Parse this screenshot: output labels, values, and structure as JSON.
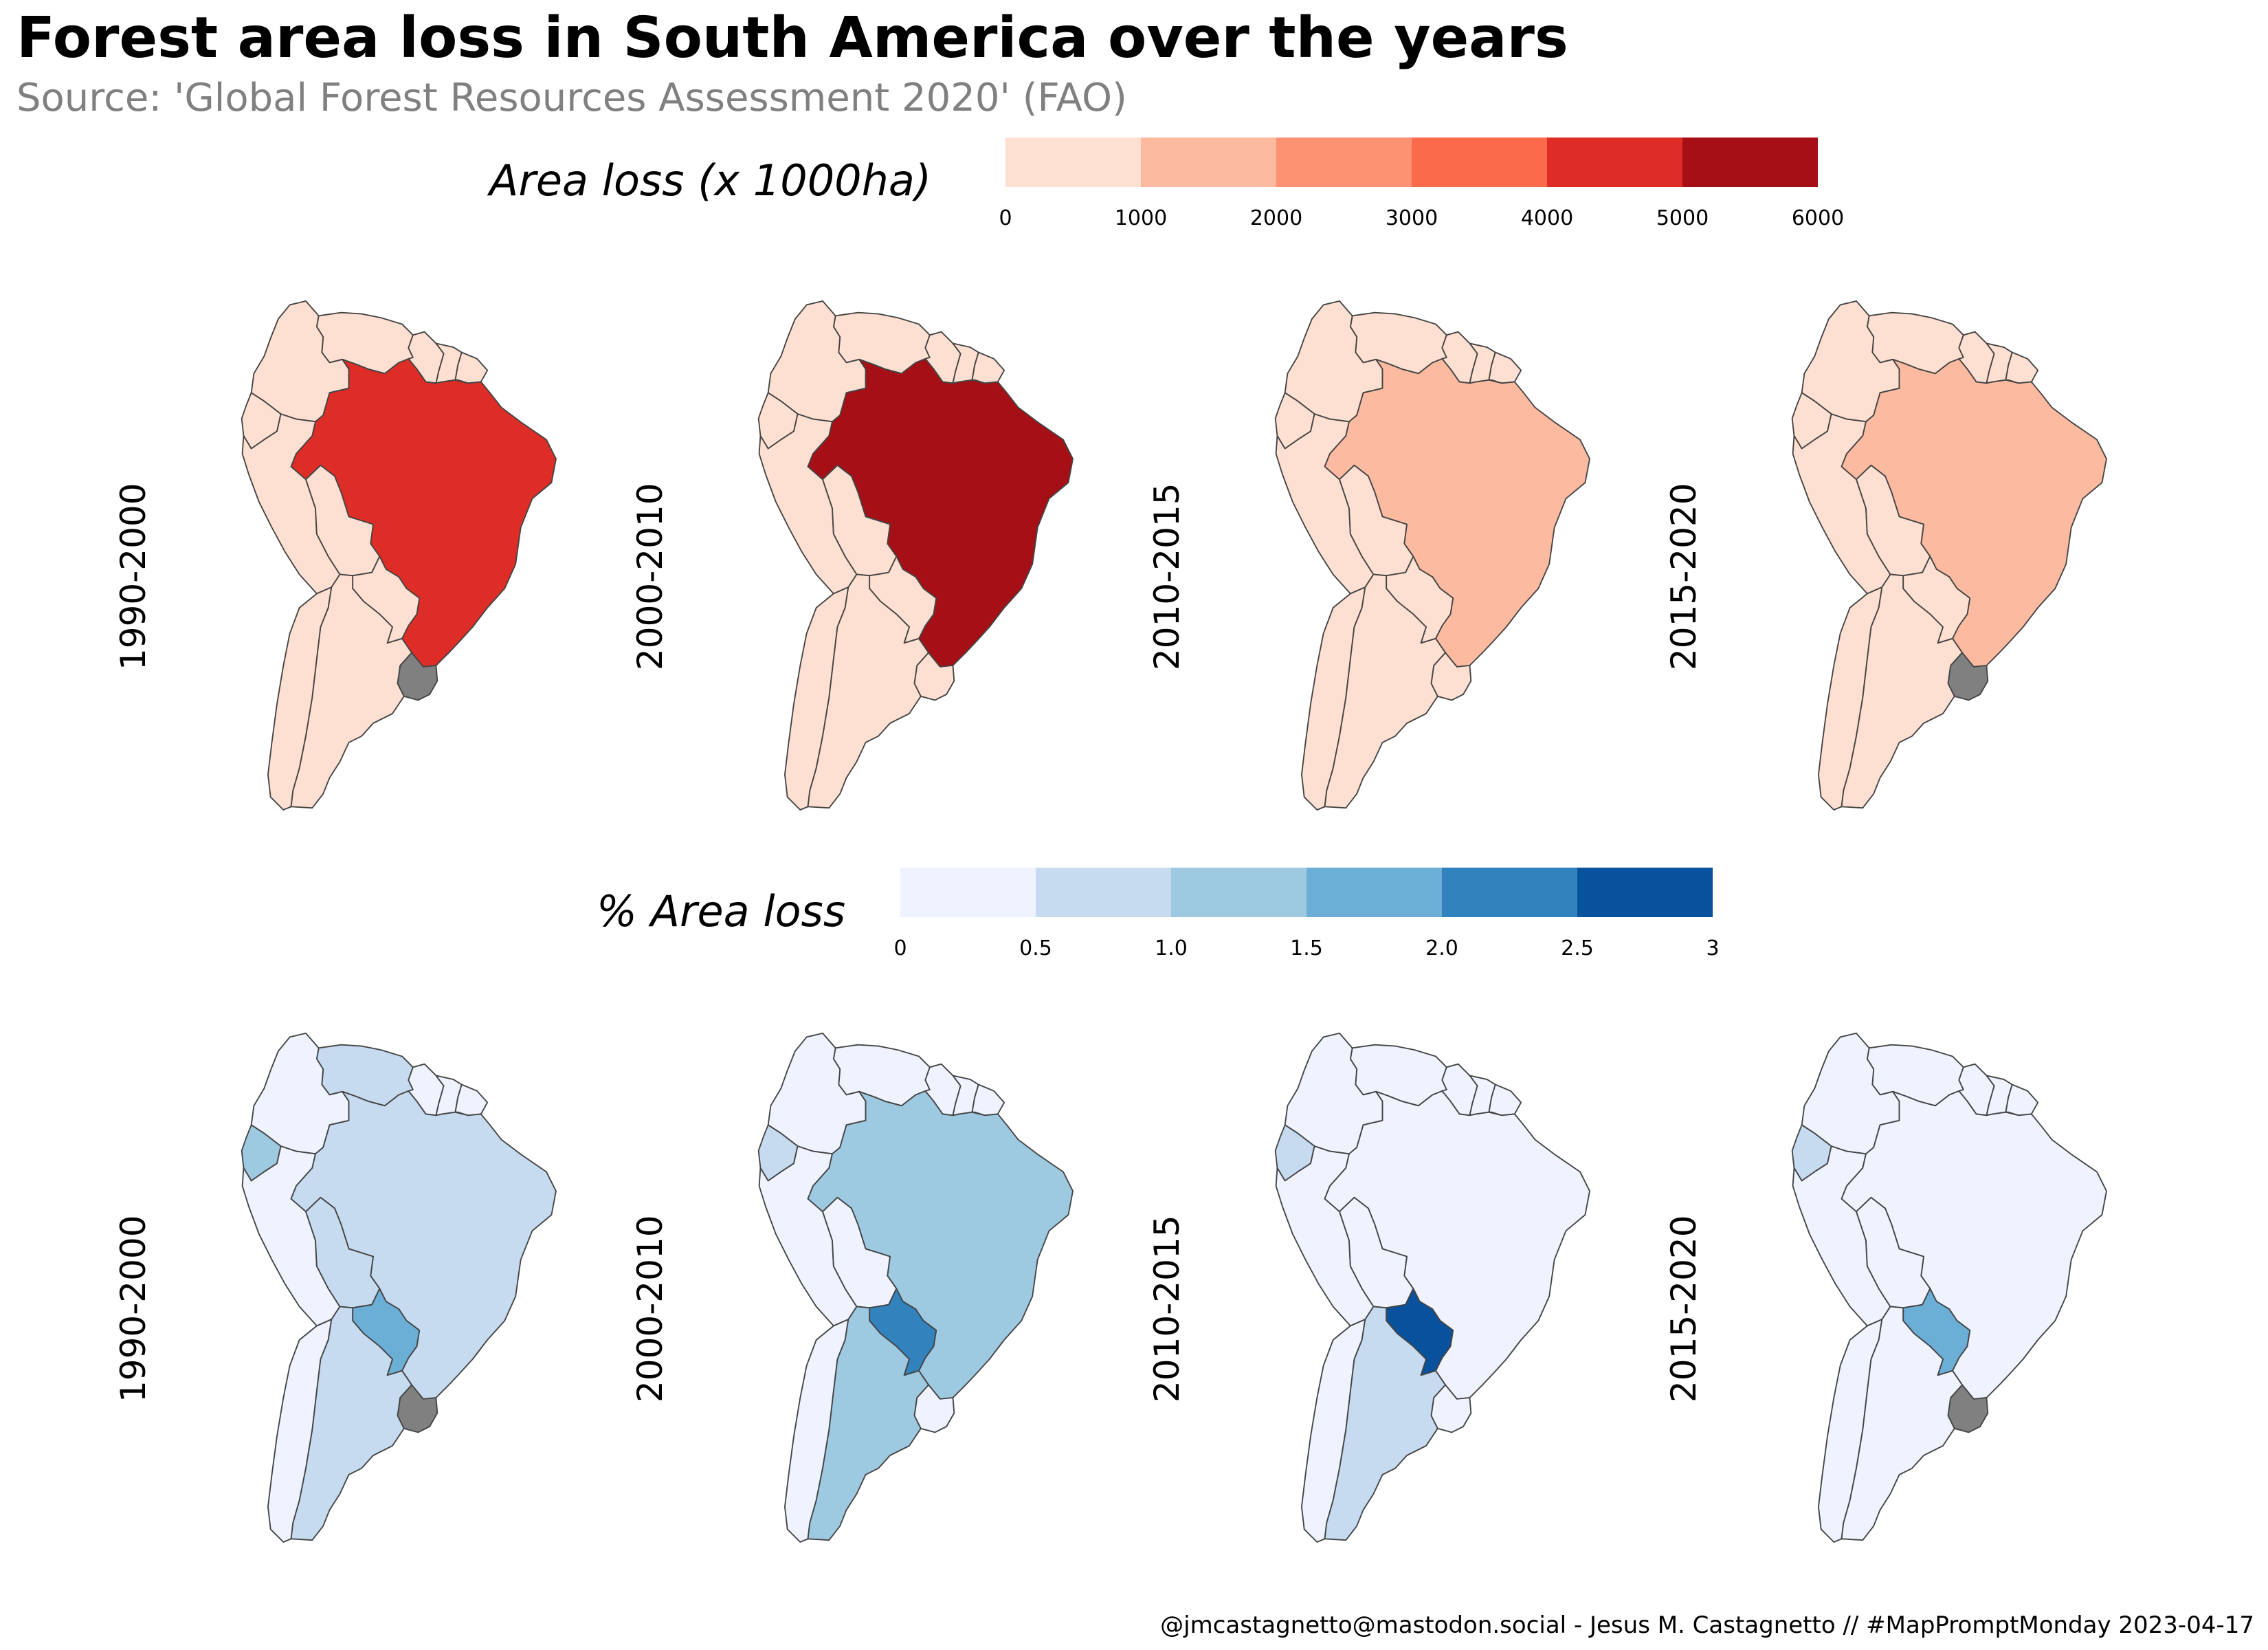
{
  "title": "Forest area loss in South America over the years",
  "subtitle": "Source: 'Global Forest Resources Assessment 2020' (FAO)",
  "credit": "@jmcastagnetto@mastodon.social - Jesus M. Castagnetto // #MapPromptMonday 2023-04-17",
  "no_data_color": "#808080",
  "legends": {
    "absolute": {
      "title": "Area loss (x 1000ha)",
      "ticks": [
        "0",
        "1000",
        "2000",
        "3000",
        "4000",
        "5000",
        "6000"
      ],
      "colors": [
        "#fee0d2",
        "#fcbba1",
        "#fc9272",
        "#fb6a4a",
        "#de2d26",
        "#a50f15"
      ]
    },
    "percent": {
      "title": "% Area loss",
      "ticks": [
        "0",
        "0.5",
        "1.0",
        "1.5",
        "2.0",
        "2.5",
        "3"
      ],
      "colors": [
        "#eff3ff",
        "#c6dbef",
        "#9ecae1",
        "#6baed6",
        "#3182bd",
        "#08519c"
      ]
    }
  },
  "rows": [
    {
      "measure": "Area loss (x 1000ha)",
      "panels": [
        {
          "period": "1990-2000",
          "colors": {
            "colombia": "#fee0d2",
            "venezuela": "#fee0d2",
            "guyana": "#fee0d2",
            "suriname": "#fee0d2",
            "french_guiana": "#fee0d2",
            "ecuador": "#fee0d2",
            "peru": "#fee0d2",
            "brazil": "#de2d26",
            "bolivia": "#fee0d2",
            "paraguay": "#fee0d2",
            "chile": "#fee0d2",
            "argentina": "#fee0d2",
            "uruguay": "#808080"
          }
        },
        {
          "period": "2000-2010",
          "colors": {
            "colombia": "#fee0d2",
            "venezuela": "#fee0d2",
            "guyana": "#fee0d2",
            "suriname": "#fee0d2",
            "french_guiana": "#fee0d2",
            "ecuador": "#fee0d2",
            "peru": "#fee0d2",
            "brazil": "#a50f15",
            "bolivia": "#fee0d2",
            "paraguay": "#fee0d2",
            "chile": "#fee0d2",
            "argentina": "#fee0d2",
            "uruguay": "#fee0d2"
          }
        },
        {
          "period": "2010-2015",
          "colors": {
            "colombia": "#fee0d2",
            "venezuela": "#fee0d2",
            "guyana": "#fee0d2",
            "suriname": "#fee0d2",
            "french_guiana": "#fee0d2",
            "ecuador": "#fee0d2",
            "peru": "#fee0d2",
            "brazil": "#fcbba1",
            "bolivia": "#fee0d2",
            "paraguay": "#fee0d2",
            "chile": "#fee0d2",
            "argentina": "#fee0d2",
            "uruguay": "#fee0d2"
          }
        },
        {
          "period": "2015-2020",
          "colors": {
            "colombia": "#fee0d2",
            "venezuela": "#fee0d2",
            "guyana": "#fee0d2",
            "suriname": "#fee0d2",
            "french_guiana": "#fee0d2",
            "ecuador": "#fee0d2",
            "peru": "#fee0d2",
            "brazil": "#fcbba1",
            "bolivia": "#fee0d2",
            "paraguay": "#fee0d2",
            "chile": "#fee0d2",
            "argentina": "#fee0d2",
            "uruguay": "#808080"
          }
        }
      ]
    },
    {
      "measure": "% Area loss",
      "panels": [
        {
          "period": "1990-2000",
          "colors": {
            "colombia": "#eff3ff",
            "venezuela": "#c6dbef",
            "guyana": "#eff3ff",
            "suriname": "#eff3ff",
            "french_guiana": "#eff3ff",
            "ecuador": "#9ecae1",
            "peru": "#eff3ff",
            "brazil": "#c6dbef",
            "bolivia": "#c6dbef",
            "paraguay": "#6baed6",
            "chile": "#eff3ff",
            "argentina": "#c6dbef",
            "uruguay": "#808080"
          }
        },
        {
          "period": "2000-2010",
          "colors": {
            "colombia": "#eff3ff",
            "venezuela": "#eff3ff",
            "guyana": "#eff3ff",
            "suriname": "#eff3ff",
            "french_guiana": "#eff3ff",
            "ecuador": "#c6dbef",
            "peru": "#eff3ff",
            "brazil": "#9ecae1",
            "bolivia": "#eff3ff",
            "paraguay": "#3182bd",
            "chile": "#eff3ff",
            "argentina": "#9ecae1",
            "uruguay": "#eff3ff"
          }
        },
        {
          "period": "2010-2015",
          "colors": {
            "colombia": "#eff3ff",
            "venezuela": "#eff3ff",
            "guyana": "#eff3ff",
            "suriname": "#eff3ff",
            "french_guiana": "#eff3ff",
            "ecuador": "#c6dbef",
            "peru": "#eff3ff",
            "brazil": "#eff3ff",
            "bolivia": "#eff3ff",
            "paraguay": "#08519c",
            "chile": "#eff3ff",
            "argentina": "#c6dbef",
            "uruguay": "#eff3ff"
          }
        },
        {
          "period": "2015-2020",
          "colors": {
            "colombia": "#eff3ff",
            "venezuela": "#eff3ff",
            "guyana": "#eff3ff",
            "suriname": "#eff3ff",
            "french_guiana": "#eff3ff",
            "ecuador": "#c6dbef",
            "peru": "#eff3ff",
            "brazil": "#eff3ff",
            "bolivia": "#eff3ff",
            "paraguay": "#6baed6",
            "chile": "#eff3ff",
            "argentina": "#eff3ff",
            "uruguay": "#808080"
          }
        }
      ]
    }
  ]
}
